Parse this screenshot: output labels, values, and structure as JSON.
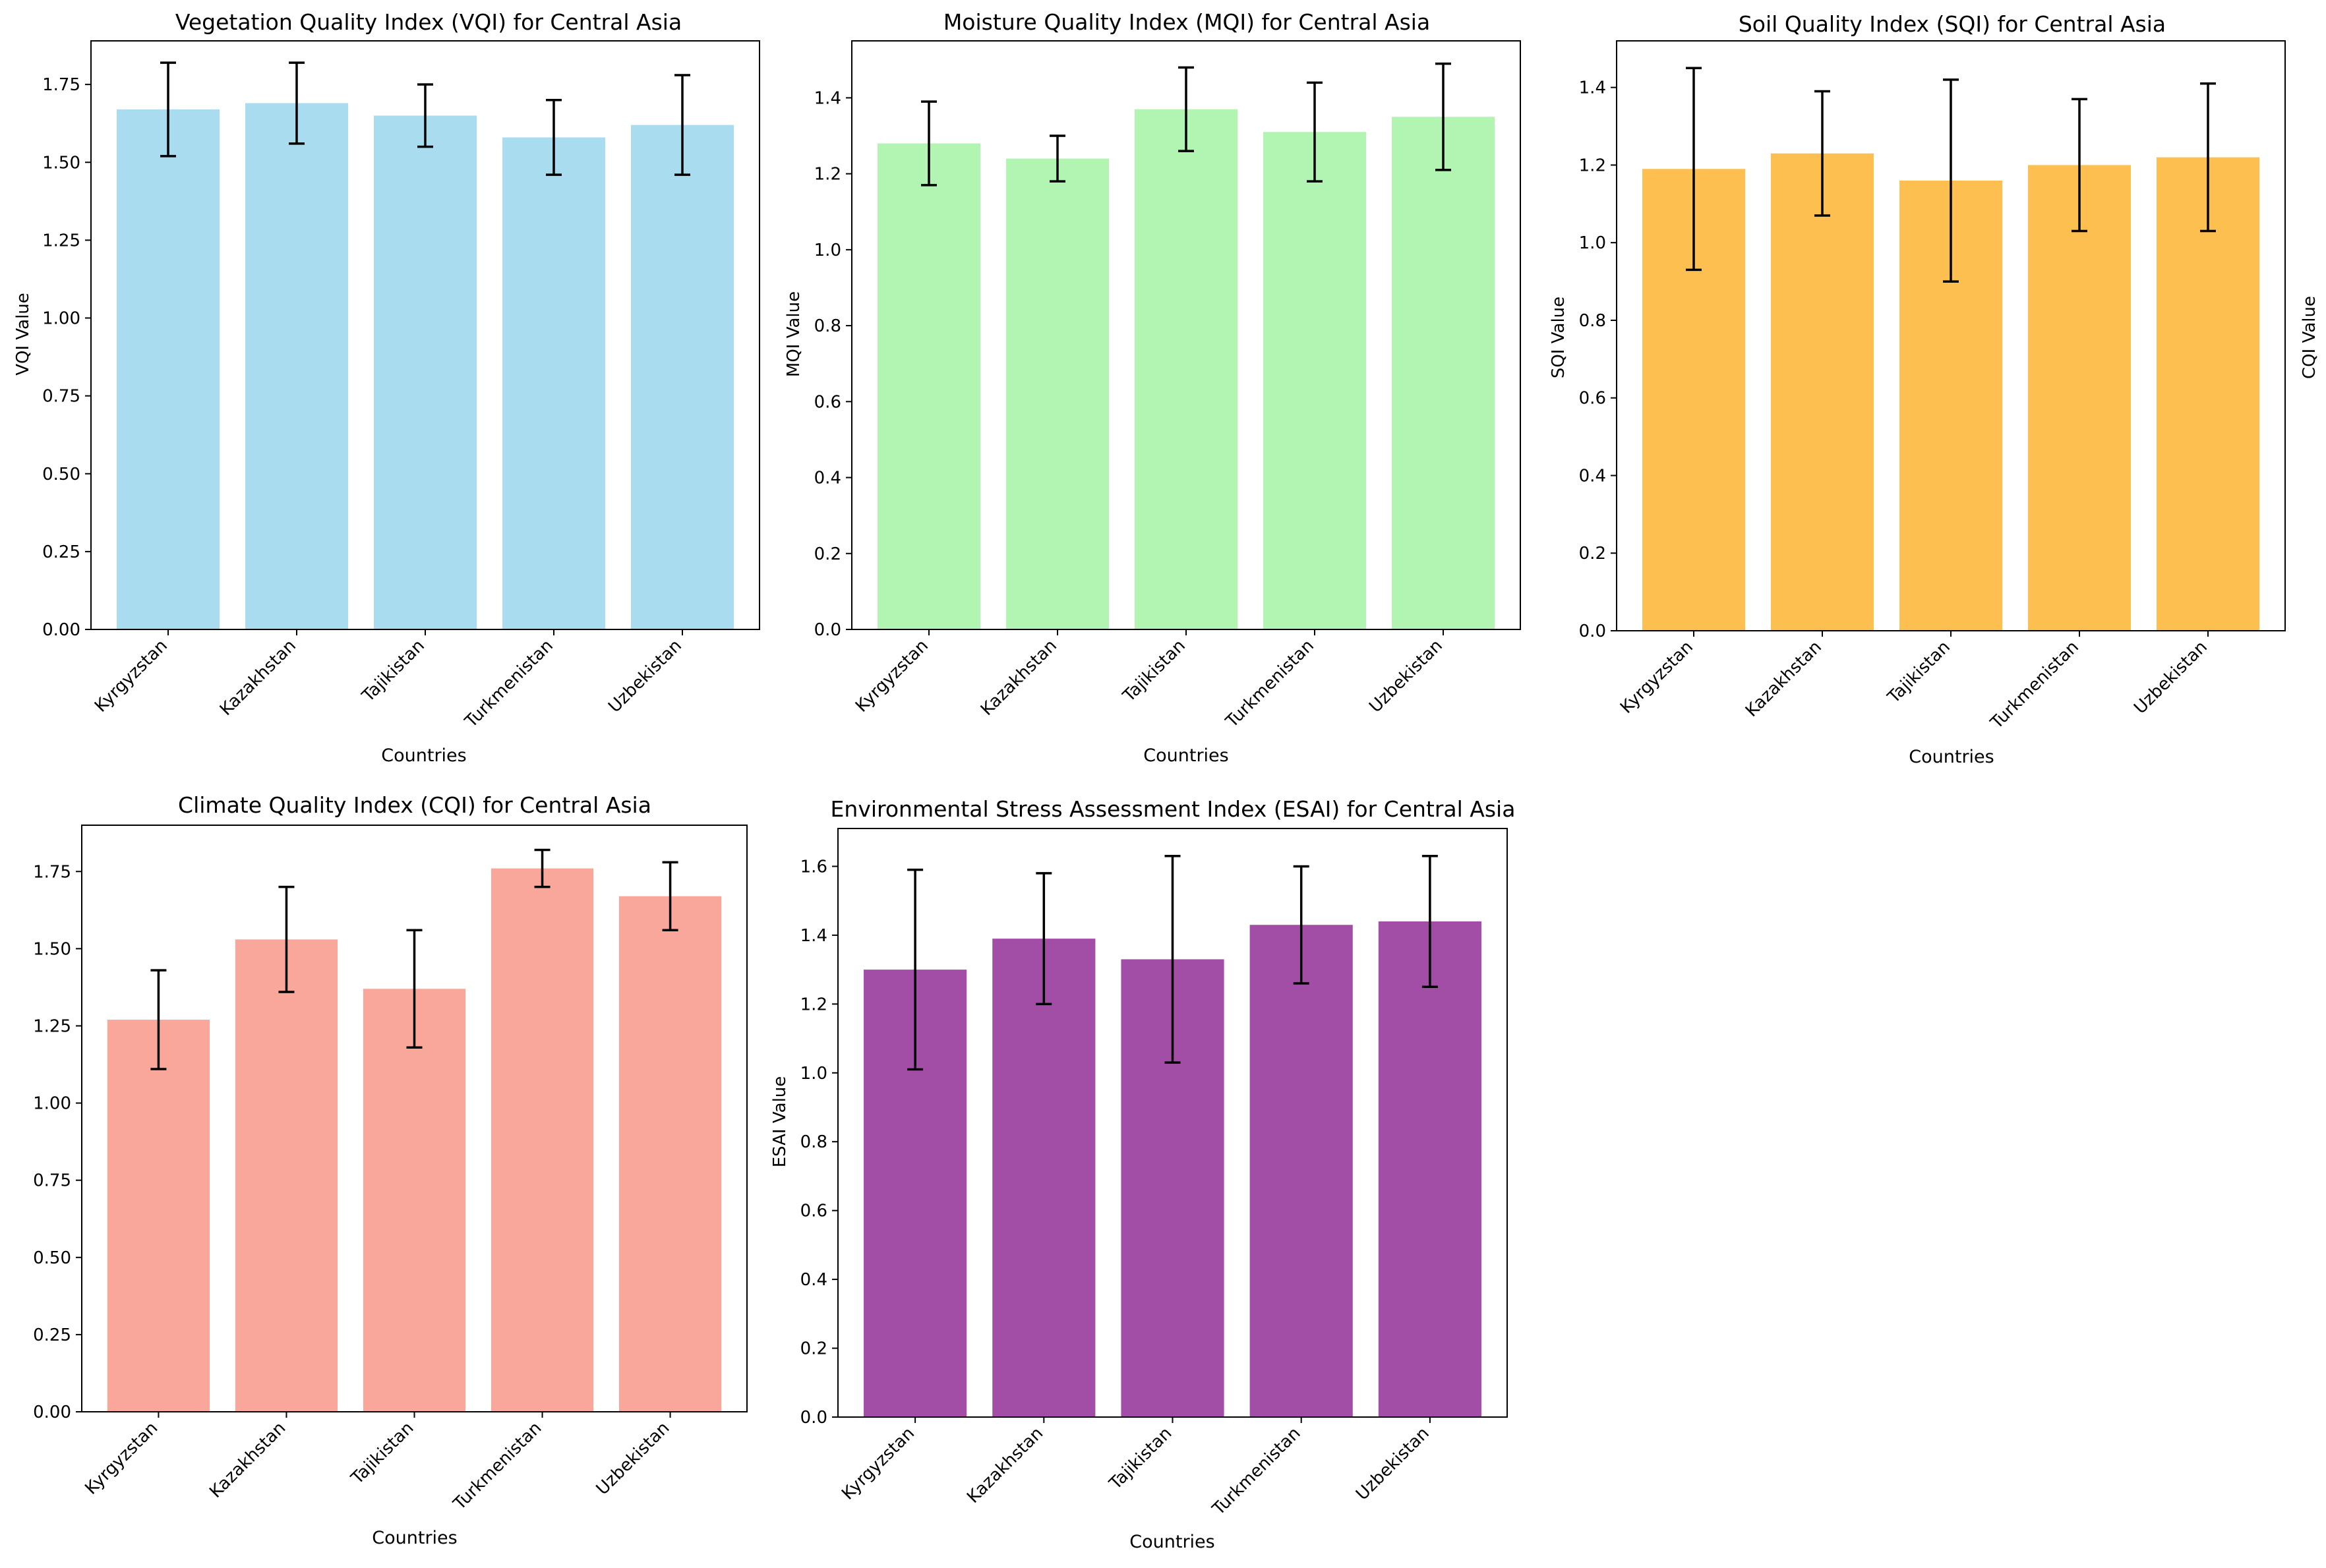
{
  "figure": {
    "countries": [
      "Kyrgyzstan",
      "Kazakhstan",
      "Tajikistan",
      "Turkmenistan",
      "Uzbekistan"
    ]
  },
  "chart_data": [
    {
      "type": "bar",
      "title": "Vegetation Quality Index (VQI) for Central Asia",
      "xlabel": "Countries",
      "ylabel": "VQI Value",
      "categories": [
        "Kyrgyzstan",
        "Kazakhstan",
        "Tajikistan",
        "Turkmenistan",
        "Uzbekistan"
      ],
      "values": [
        1.67,
        1.69,
        1.65,
        1.58,
        1.62
      ],
      "errors": [
        0.15,
        0.13,
        0.1,
        0.12,
        0.16
      ],
      "ylim": [
        0,
        1.89
      ],
      "yticks": [
        0.0,
        0.25,
        0.5,
        0.75,
        1.0,
        1.25,
        1.5,
        1.75
      ],
      "tick_decimals": 2,
      "color": "#a8dcee",
      "grid": false
    },
    {
      "type": "bar",
      "title": "Moisture Quality Index (MQI) for Central Asia",
      "xlabel": "Countries",
      "ylabel": "MQI Value",
      "categories": [
        "Kyrgyzstan",
        "Kazakhstan",
        "Tajikistan",
        "Turkmenistan",
        "Uzbekistan"
      ],
      "values": [
        1.28,
        1.24,
        1.37,
        1.31,
        1.35
      ],
      "errors": [
        0.11,
        0.06,
        0.11,
        0.13,
        0.14
      ],
      "ylim": [
        0,
        1.55
      ],
      "yticks": [
        0.0,
        0.2,
        0.4,
        0.6,
        0.8,
        1.0,
        1.2,
        1.4
      ],
      "tick_decimals": 1,
      "color": "#b2f4b1",
      "grid": false
    },
    {
      "type": "bar",
      "title": "Soil Quality Index (SQI) for Central Asia",
      "xlabel": "Countries",
      "ylabel": "SQI Value",
      "categories": [
        "Kyrgyzstan",
        "Kazakhstan",
        "Tajikistan",
        "Turkmenistan",
        "Uzbekistan"
      ],
      "values": [
        1.19,
        1.23,
        1.16,
        1.2,
        1.22
      ],
      "errors": [
        0.26,
        0.16,
        0.26,
        0.17,
        0.19
      ],
      "ylim": [
        0,
        1.52
      ],
      "yticks": [
        0.0,
        0.2,
        0.4,
        0.6,
        0.8,
        1.0,
        1.2,
        1.4
      ],
      "tick_decimals": 1,
      "color": "#fcbf50",
      "grid": false
    },
    {
      "type": "bar",
      "title": "Climate Quality Index (CQI) for Central Asia",
      "xlabel": "Countries",
      "ylabel": "CQI Value",
      "categories": [
        "Kyrgyzstan",
        "Kazakhstan",
        "Tajikistan",
        "Turkmenistan",
        "Uzbekistan"
      ],
      "values": [
        1.27,
        1.53,
        1.37,
        1.76,
        1.67
      ],
      "errors": [
        0.16,
        0.17,
        0.19,
        0.06,
        0.11
      ],
      "ylim": [
        0,
        1.9
      ],
      "yticks": [
        0.0,
        0.25,
        0.5,
        0.75,
        1.0,
        1.25,
        1.5,
        1.75
      ],
      "tick_decimals": 2,
      "color": "#f9a69b",
      "grid": false
    },
    {
      "type": "bar",
      "title": "Environmental Stress Assessment Index (ESAI) for Central Asia",
      "xlabel": "Countries",
      "ylabel": "ESAI Value",
      "categories": [
        "Kyrgyzstan",
        "Kazakhstan",
        "Tajikistan",
        "Turkmenistan",
        "Uzbekistan"
      ],
      "values": [
        1.3,
        1.39,
        1.33,
        1.43,
        1.44
      ],
      "errors": [
        0.29,
        0.19,
        0.3,
        0.17,
        0.19
      ],
      "ylim": [
        0,
        1.71
      ],
      "yticks": [
        0.0,
        0.2,
        0.4,
        0.6,
        0.8,
        1.0,
        1.2,
        1.4,
        1.6
      ],
      "tick_decimals": 1,
      "color": "#a34ea6",
      "grid": false
    }
  ]
}
